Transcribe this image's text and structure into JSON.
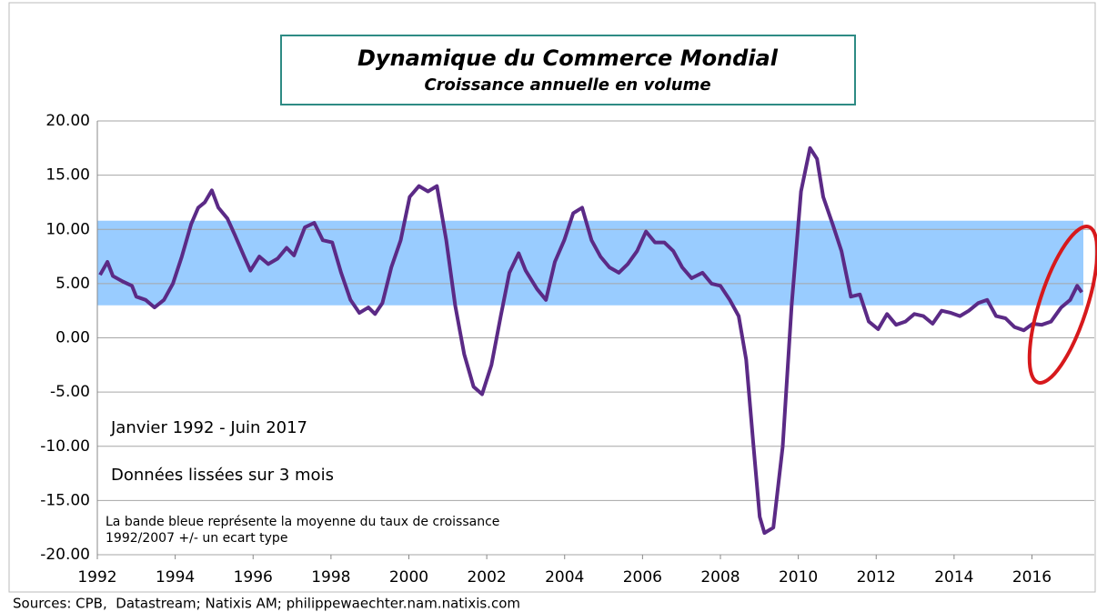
{
  "chart_data": {
    "type": "line",
    "title": "Dynamique du Commerce Mondial",
    "subtitle": "Croissance annuelle en volume",
    "annotations": [
      "Janvier 1992 - Juin 2017",
      "Données lissées sur 3 mois",
      "La bande bleue représente la moyenne du taux de croissance",
      "1992/2007 +/- un ecart type"
    ],
    "source": "Sources: CPB,  Datastream; Natixis AM; philippewaechter.nam.natixis.com",
    "band": [
      3,
      10.8
    ],
    "band_color": "#99ccff",
    "color": "#5b2a86",
    "x": [
      1992.07,
      1992.26,
      1992.4,
      1992.65,
      1992.89,
      1993.0,
      1993.24,
      1993.47,
      1993.71,
      1993.94,
      1994.17,
      1994.41,
      1994.59,
      1994.76,
      1994.94,
      1995.11,
      1995.34,
      1995.53,
      1995.77,
      1995.93,
      1996.16,
      1996.39,
      1996.63,
      1996.86,
      1997.05,
      1997.33,
      1997.57,
      1997.79,
      1998.03,
      1998.26,
      1998.5,
      1998.73,
      1998.96,
      1999.13,
      1999.32,
      1999.55,
      1999.79,
      2000.02,
      2000.26,
      2000.49,
      2000.72,
      2000.96,
      2001.19,
      2001.42,
      2001.66,
      2001.88,
      2002.12,
      2002.36,
      2002.58,
      2002.82,
      2003.0,
      2003.29,
      2003.52,
      2003.75,
      2003.99,
      2004.22,
      2004.45,
      2004.69,
      2004.92,
      2005.15,
      2005.39,
      2005.62,
      2005.86,
      2006.09,
      2006.32,
      2006.56,
      2006.79,
      2007.02,
      2007.26,
      2007.54,
      2007.77,
      2008.0,
      2008.24,
      2008.47,
      2008.66,
      2008.85,
      2009.01,
      2009.13,
      2009.36,
      2009.6,
      2009.83,
      2010.07,
      2010.3,
      2010.48,
      2010.64,
      2010.88,
      2011.11,
      2011.35,
      2011.58,
      2011.81,
      2012.05,
      2012.28,
      2012.51,
      2012.75,
      2012.98,
      2013.21,
      2013.45,
      2013.68,
      2013.92,
      2014.15,
      2014.38,
      2014.62,
      2014.85,
      2015.08,
      2015.32,
      2015.55,
      2015.79,
      2016.02,
      2016.25,
      2016.49,
      2016.75,
      2016.98,
      2017.16,
      2017.28
    ],
    "values": [
      5.8,
      7,
      5.7,
      5.2,
      4.8,
      3.8,
      3.5,
      2.8,
      3.5,
      5,
      7.5,
      10.5,
      12,
      12.5,
      13.6,
      12,
      11,
      9.5,
      7.5,
      6.2,
      7.5,
      6.8,
      7.3,
      8.3,
      7.6,
      10.2,
      10.6,
      9,
      8.8,
      6,
      3.5,
      2.3,
      2.8,
      2.2,
      3.2,
      6.5,
      9,
      13,
      14,
      13.5,
      14,
      9,
      3,
      -1.5,
      -4.5,
      -5.2,
      -2.5,
      2,
      6,
      7.8,
      6.2,
      4.5,
      3.5,
      7,
      9,
      11.5,
      12,
      9,
      7.5,
      6.5,
      6,
      6.8,
      8,
      9.8,
      8.8,
      8.8,
      8,
      6.5,
      5.5,
      6,
      5,
      4.8,
      3.5,
      2,
      -2,
      -10,
      -16.5,
      -18,
      -17.5,
      -10,
      3,
      13.5,
      17.5,
      16.5,
      13,
      10.5,
      8,
      3.8,
      4,
      1.5,
      0.8,
      2.2,
      1.2,
      1.5,
      2.2,
      2,
      1.3,
      2.5,
      2.3,
      2,
      2.5,
      3.2,
      3.5,
      2,
      1.8,
      1,
      0.7,
      1.3,
      1.2,
      1.5,
      2.8,
      3.5,
      4.8,
      4.2
    ],
    "xlim": [
      1992,
      2017.6
    ],
    "xticks": [
      1992,
      1994,
      1996,
      1998,
      2000,
      2002,
      2004,
      2006,
      2008,
      2010,
      2012,
      2014,
      2016
    ],
    "ylim": [
      -20,
      20
    ],
    "yticks": [
      {
        "value": -20,
        "label": "-20.00"
      },
      {
        "value": -15,
        "label": "-15.00"
      },
      {
        "value": -10,
        "label": "-10.00"
      },
      {
        "value": -5,
        "label": "-5.00"
      },
      {
        "value": 0,
        "label": "0.00"
      },
      {
        "value": 5,
        "label": "5.00"
      },
      {
        "value": 10,
        "label": "10.00"
      },
      {
        "value": 15,
        "label": "15.00"
      },
      {
        "value": 20,
        "label": "20.00"
      }
    ],
    "grid": true
  }
}
